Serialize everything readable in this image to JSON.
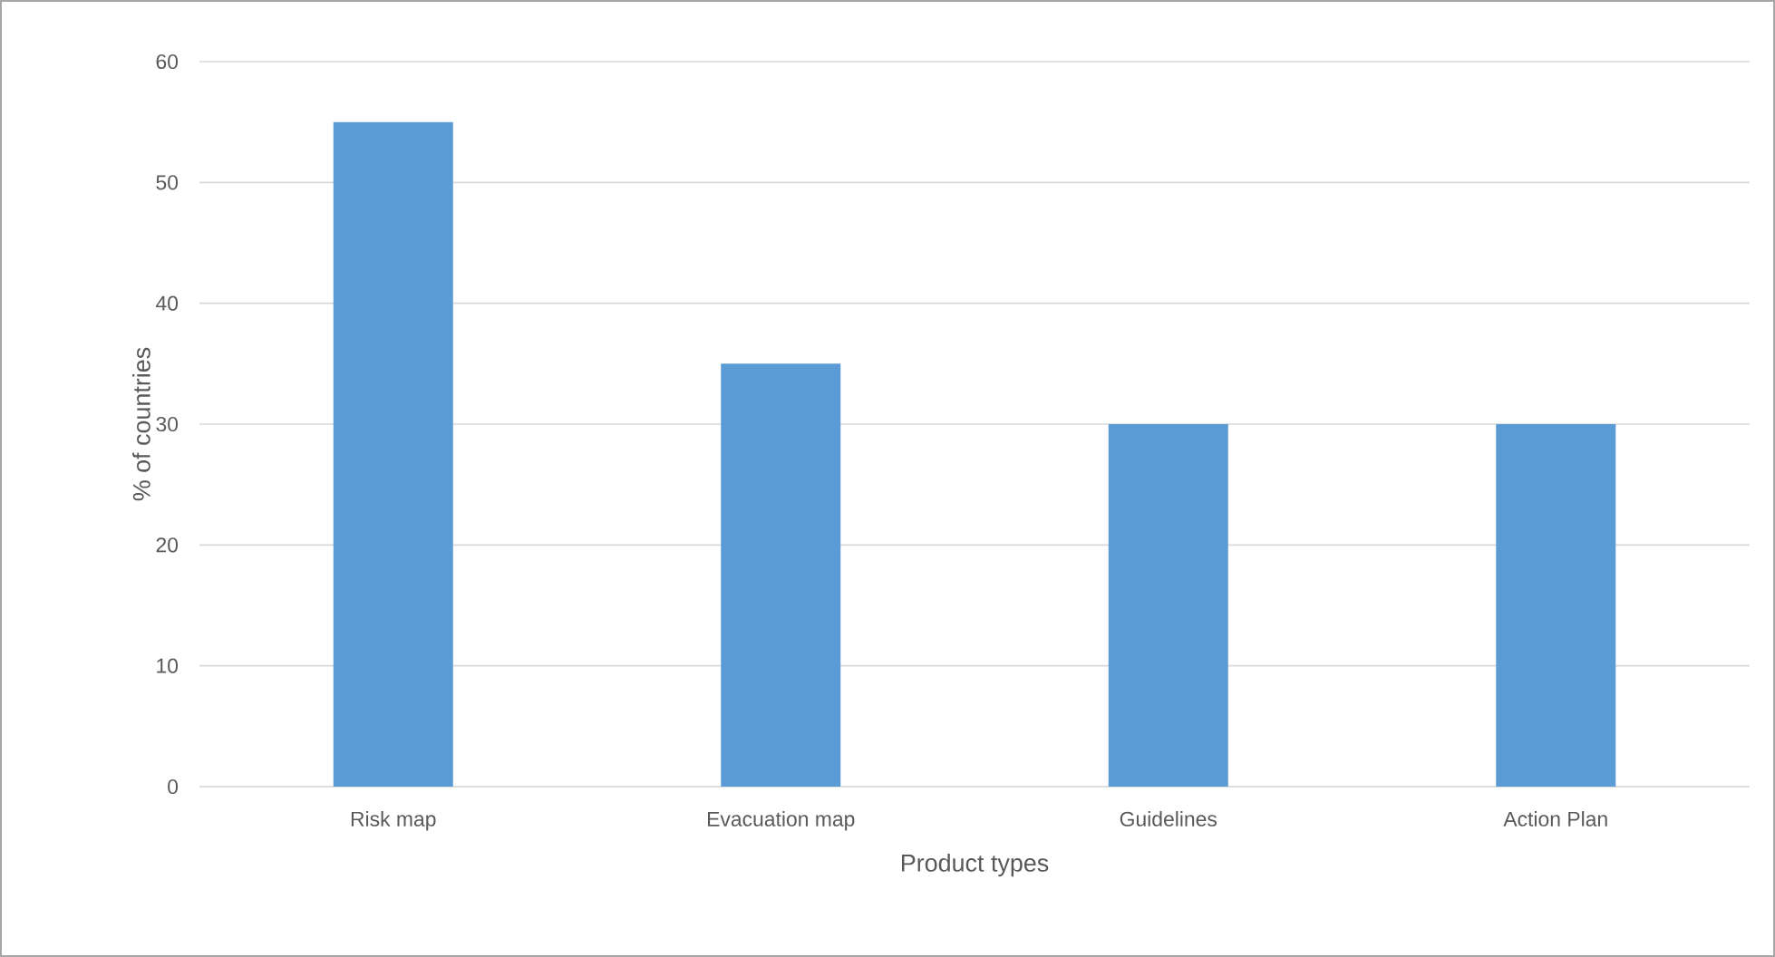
{
  "chart_data": {
    "type": "bar",
    "xlabel": "Product types",
    "ylabel": "% of countries",
    "categories": [
      "Risk map",
      "Evacuation map",
      "Guidelines",
      "Action Plan"
    ],
    "values": [
      55,
      35,
      30,
      30
    ],
    "color": "#5b9bd5",
    "ylim": [
      0,
      60
    ],
    "yticks": [
      0,
      10,
      20,
      30,
      40,
      50,
      60
    ],
    "grid": "y"
  }
}
